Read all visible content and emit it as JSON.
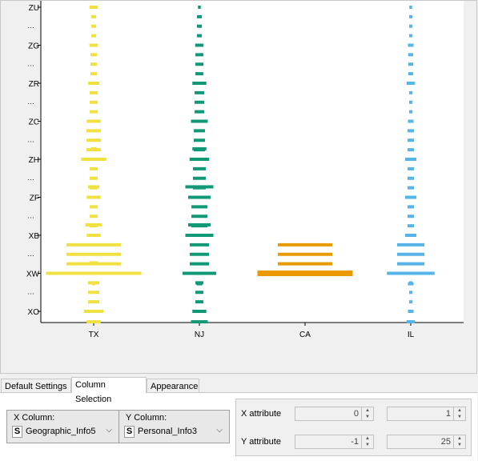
{
  "chart_data": {
    "type": "violin",
    "categories": [
      "TX",
      "NJ",
      "CA",
      "IL"
    ],
    "y_tick_labels": [
      "ZU",
      "ZG",
      "ZR",
      "ZC",
      "ZH",
      "ZF",
      "XB",
      "XW",
      "XO"
    ],
    "series_colors": [
      "#f0e040",
      "#119977",
      "#e89a00",
      "#56b4e9"
    ],
    "series": [
      {
        "category": "TX",
        "widths": {
          "XO": 7,
          "XO+": 5,
          "XW-": 3,
          "XW": 34,
          "XW+": 1,
          "XB-": 6,
          "XB": 5,
          "ZF-": 4,
          "ZF": 5,
          "ZH-": 2,
          "ZH": 9,
          "ZC": 5,
          "ZR": 4,
          "ZG": 3,
          "ZU": 3
        }
      },
      {
        "category": "NJ",
        "widths": {
          "XO": 5,
          "XO+": 6,
          "XW": 12,
          "XW+": 2,
          "XB": 10,
          "XB-": 8,
          "ZF": 8,
          "ZF-": 10,
          "ZH": 7,
          "ZH-": 5,
          "ZC": 6,
          "ZR": 5,
          "ZG": 3,
          "ZU": 1
        }
      },
      {
        "category": "CA",
        "widths": {
          "XW": 34
        }
      },
      {
        "category": "IL",
        "widths": {
          "XO": 2,
          "XO+": 3,
          "XW": 17,
          "XW+": 2,
          "XB": 4,
          "ZF": 4,
          "ZH": 4,
          "ZC": 2,
          "ZR": 3,
          "ZG": 2,
          "ZU": 1
        }
      }
    ]
  },
  "tabs": [
    {
      "label": "Default Settings",
      "active": false
    },
    {
      "label": "Column Selection",
      "active": true
    },
    {
      "label": "Appearance",
      "active": false
    }
  ],
  "column_selection": {
    "x_label": "X Column:",
    "x_value": "Geographic_Info5",
    "y_label": "Y Column:",
    "y_value": "Personal_Info3",
    "type_badge": "S"
  },
  "attributes": {
    "x_label": "X attribute",
    "y_label": "Y attribute",
    "x_min": "0",
    "x_max": "1",
    "y_min": "-1",
    "y_max": "25"
  }
}
